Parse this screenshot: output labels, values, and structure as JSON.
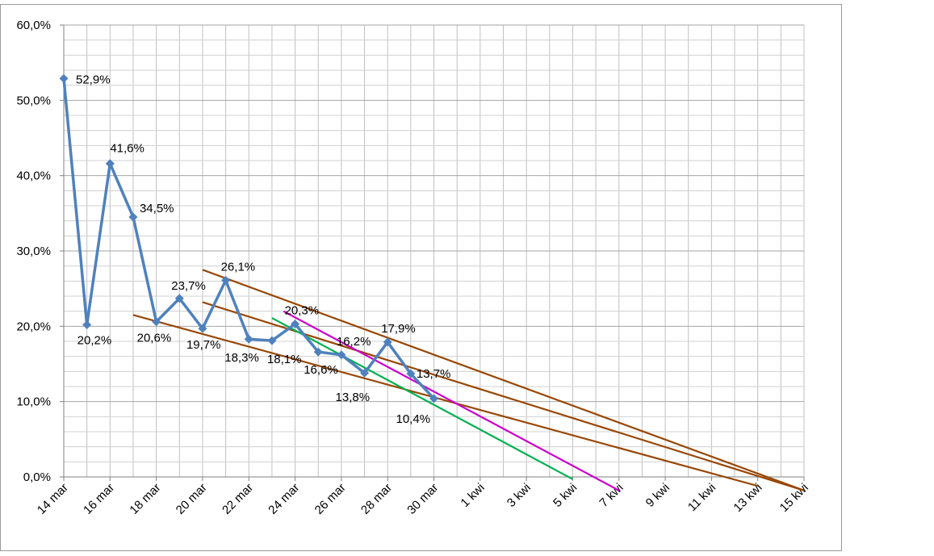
{
  "chart_data": {
    "type": "line",
    "title": "",
    "xlabel": "",
    "ylabel": "",
    "ylim": [
      0,
      60
    ],
    "grid": true,
    "y_ticks": [
      "0,0%",
      "10,0%",
      "20,0%",
      "30,0%",
      "40,0%",
      "50,0%",
      "60,0%"
    ],
    "x_ticks": [
      "14 mar",
      "16 mar",
      "18 mar",
      "20 mar",
      "22 mar",
      "24 mar",
      "26 mar",
      "28 mar",
      "30 mar",
      "1 kwi",
      "3 kwi",
      "5 kwi",
      "7 kwi",
      "9 kwi",
      "11 kwi",
      "13 kwi",
      "15 kwi"
    ],
    "series": [
      {
        "values": [
          {
            "x": "14 mar",
            "y": 52.9,
            "label": "52,9%"
          },
          {
            "x": "15 mar",
            "y": 20.2,
            "label": "20,2%"
          },
          {
            "x": "16 mar",
            "y": 41.6,
            "label": "41,6%"
          },
          {
            "x": "17 mar",
            "y": 34.5,
            "label": "34,5%"
          },
          {
            "x": "18 mar",
            "y": 20.6,
            "label": "20,6%"
          },
          {
            "x": "19 mar",
            "y": 23.7,
            "label": "23,7%"
          },
          {
            "x": "20 mar",
            "y": 19.7,
            "label": "19,7%"
          },
          {
            "x": "21 mar",
            "y": 26.1,
            "label": "26,1%"
          },
          {
            "x": "22 mar",
            "y": 18.3,
            "label": "18,3%"
          },
          {
            "x": "23 mar",
            "y": 18.1,
            "label": "18,1%"
          },
          {
            "x": "24 mar",
            "y": 20.3,
            "label": "20,3%"
          },
          {
            "x": "25 mar",
            "y": 16.6,
            "label": "16,6%"
          },
          {
            "x": "26 mar",
            "y": 16.2,
            "label": "16,2%"
          },
          {
            "x": "27 mar",
            "y": 13.8,
            "label": "13,8%"
          },
          {
            "x": "28 mar",
            "y": 17.9,
            "label": "17,9%"
          },
          {
            "x": "29 mar",
            "y": 13.7,
            "label": "13,7%"
          },
          {
            "x": "30 mar",
            "y": 10.4,
            "label": "10,4%"
          }
        ]
      }
    ],
    "trend_lines": [
      {
        "color": "#984807",
        "from": {
          "x": "20 mar",
          "y": 27.5
        },
        "to": {
          "x": "15 kwi",
          "y": -1.8
        }
      },
      {
        "color": "#984807",
        "from": {
          "x": "20 mar",
          "y": 23.2
        },
        "to": {
          "x": "15 kwi",
          "y": -1.8
        }
      },
      {
        "color": "#984807",
        "from": {
          "x": "17 mar",
          "y": 21.5
        },
        "to": {
          "x": "13 kwi",
          "y": -1.2
        }
      },
      {
        "color": "#00b050",
        "from": {
          "x": "23 mar",
          "y": 21.1
        },
        "to": {
          "x": "5 kwi",
          "y": -0.3
        }
      },
      {
        "color": "#cc00cc",
        "from": {
          "x": "23.5 mar",
          "y": 22.0
        },
        "to": {
          "x": "7 kwi",
          "y": -1.8
        }
      }
    ],
    "colors": {
      "series": "#4f81bd",
      "grid": "#c0c0c0",
      "axis": "#808080"
    }
  }
}
